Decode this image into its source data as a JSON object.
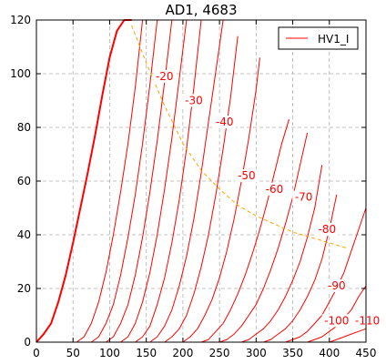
{
  "chart_data": {
    "type": "line",
    "title": "AD1, 4683",
    "xlabel": "",
    "ylabel": "",
    "xlim": [
      0,
      450
    ],
    "ylim": [
      0,
      120
    ],
    "xticks": [
      0,
      50,
      100,
      150,
      200,
      250,
      300,
      350,
      400,
      450
    ],
    "yticks": [
      0,
      20,
      40,
      60,
      80,
      100,
      120
    ],
    "grid": true,
    "legend": {
      "position": "top-right",
      "entries": [
        "HV1_I"
      ]
    },
    "colors": {
      "curves": "#ff0000",
      "load_line": "#ffa500",
      "axes": "#000000",
      "grid": "#b0b0b0"
    },
    "series_name": "HV1_I",
    "series": [
      {
        "grid_voltage": "0",
        "x": [
          0,
          10,
          20,
          30,
          40,
          50,
          60,
          70,
          80,
          90,
          100,
          110,
          120,
          130
        ],
        "y": [
          0,
          3,
          7,
          15,
          25,
          37,
          50,
          63,
          77,
          92,
          106,
          116,
          120,
          120
        ]
      },
      {
        "grid_voltage": "",
        "x": [
          55,
          65,
          75,
          85,
          95,
          105,
          115,
          125,
          135,
          145
        ],
        "y": [
          0,
          2,
          7,
          15,
          26,
          40,
          56,
          74,
          95,
          120
        ]
      },
      {
        "grid_voltage": "",
        "x": [
          75,
          85,
          95,
          105,
          115,
          125,
          135,
          145,
          155,
          165
        ],
        "y": [
          0,
          2,
          7,
          14,
          25,
          39,
          55,
          74,
          96,
          120
        ]
      },
      {
        "grid_voltage": "",
        "x": [
          95,
          105,
          115,
          125,
          135,
          145,
          155,
          165,
          175,
          185
        ],
        "y": [
          0,
          2,
          7,
          14,
          25,
          39,
          56,
          75,
          97,
          120
        ]
      },
      {
        "grid_voltage": "-20",
        "x": [
          115,
          125,
          135,
          145,
          155,
          165,
          175,
          185,
          195,
          205
        ],
        "y": [
          0,
          2,
          7,
          15,
          26,
          40,
          57,
          76,
          98,
          120
        ]
      },
      {
        "grid_voltage": "-30",
        "x": [
          135,
          145,
          155,
          165,
          175,
          185,
          195,
          205,
          215,
          225
        ],
        "y": [
          0,
          2,
          6,
          14,
          24,
          37,
          53,
          72,
          95,
          120
        ]
      },
      {
        "grid_voltage": "-40",
        "x": [
          155,
          165,
          175,
          185,
          195,
          205,
          215,
          225,
          235,
          245,
          255
        ],
        "y": [
          0,
          2,
          6,
          12,
          21,
          32,
          46,
          63,
          82,
          101,
          120
        ]
      },
      {
        "grid_voltage": "",
        "x": [
          175,
          185,
          195,
          205,
          215,
          225,
          235,
          245,
          255,
          265,
          275
        ],
        "y": [
          0,
          2,
          5,
          10,
          18,
          28,
          40,
          55,
          72,
          91,
          114
        ]
      },
      {
        "grid_voltage": "-50",
        "x": [
          200,
          210,
          220,
          230,
          240,
          250,
          260,
          270,
          280,
          290,
          300,
          305
        ],
        "y": [
          0,
          2,
          5,
          10,
          16,
          24,
          34,
          46,
          60,
          76,
          94,
          106
        ]
      },
      {
        "grid_voltage": "-60",
        "x": [
          225,
          235,
          245,
          255,
          265,
          275,
          285,
          295,
          305,
          315,
          325,
          335,
          345
        ],
        "y": [
          0,
          1,
          4,
          7,
          12,
          18,
          25,
          33,
          42,
          52,
          63,
          74,
          83
        ]
      },
      {
        "grid_voltage": "-70",
        "x": [
          250,
          260,
          270,
          280,
          290,
          300,
          310,
          320,
          330,
          340,
          350,
          360,
          370
        ],
        "y": [
          0,
          1,
          3,
          6,
          10,
          14,
          20,
          27,
          35,
          44,
          54,
          66,
          78
        ]
      },
      {
        "grid_voltage": "-80",
        "x": [
          280,
          290,
          300,
          310,
          320,
          330,
          340,
          350,
          360,
          370,
          380,
          390
        ],
        "y": [
          0,
          1,
          3,
          5,
          8,
          12,
          17,
          23,
          30,
          39,
          50,
          66
        ]
      },
      {
        "grid_voltage": "",
        "x": [
          310,
          320,
          330,
          340,
          350,
          360,
          370,
          380,
          390,
          400,
          410
        ],
        "y": [
          0,
          1,
          3,
          5,
          8,
          12,
          17,
          23,
          31,
          42,
          55
        ]
      },
      {
        "grid_voltage": "-90",
        "x": [
          340,
          350,
          360,
          370,
          380,
          390,
          400,
          410,
          420,
          430,
          440,
          450
        ],
        "y": [
          0,
          1,
          2,
          4,
          7,
          10,
          15,
          20,
          26,
          34,
          42,
          50
        ]
      },
      {
        "grid_voltage": "-100",
        "x": [
          370,
          380,
          390,
          400,
          410,
          420,
          430,
          440,
          450
        ],
        "y": [
          0,
          1,
          2,
          4,
          6,
          9,
          12,
          17,
          21
        ]
      },
      {
        "grid_voltage": "-110",
        "x": [
          400,
          410,
          420,
          430,
          440,
          450
        ],
        "y": [
          0,
          1,
          2,
          3,
          4,
          5
        ]
      }
    ],
    "load_line": {
      "x": [
        130,
        150,
        175,
        200,
        225,
        250,
        275,
        300,
        325,
        350,
        375,
        400,
        425
      ],
      "y": [
        118,
        104,
        88,
        74,
        64,
        57,
        51,
        47,
        44,
        41,
        39,
        37,
        35
      ]
    },
    "curve_labels": [
      {
        "text": "-20",
        "x": 175,
        "y": 98
      },
      {
        "text": "-30",
        "x": 215,
        "y": 89
      },
      {
        "text": "-40",
        "x": 257,
        "y": 81
      },
      {
        "text": "-50",
        "x": 287,
        "y": 61
      },
      {
        "text": "-60",
        "x": 325,
        "y": 56
      },
      {
        "text": "-70",
        "x": 365,
        "y": 53
      },
      {
        "text": "-80",
        "x": 397,
        "y": 41
      },
      {
        "text": "-90",
        "x": 410,
        "y": 20
      },
      {
        "text": "-100",
        "x": 410,
        "y": 7
      },
      {
        "text": "-110",
        "x": 452,
        "y": 7
      }
    ]
  }
}
